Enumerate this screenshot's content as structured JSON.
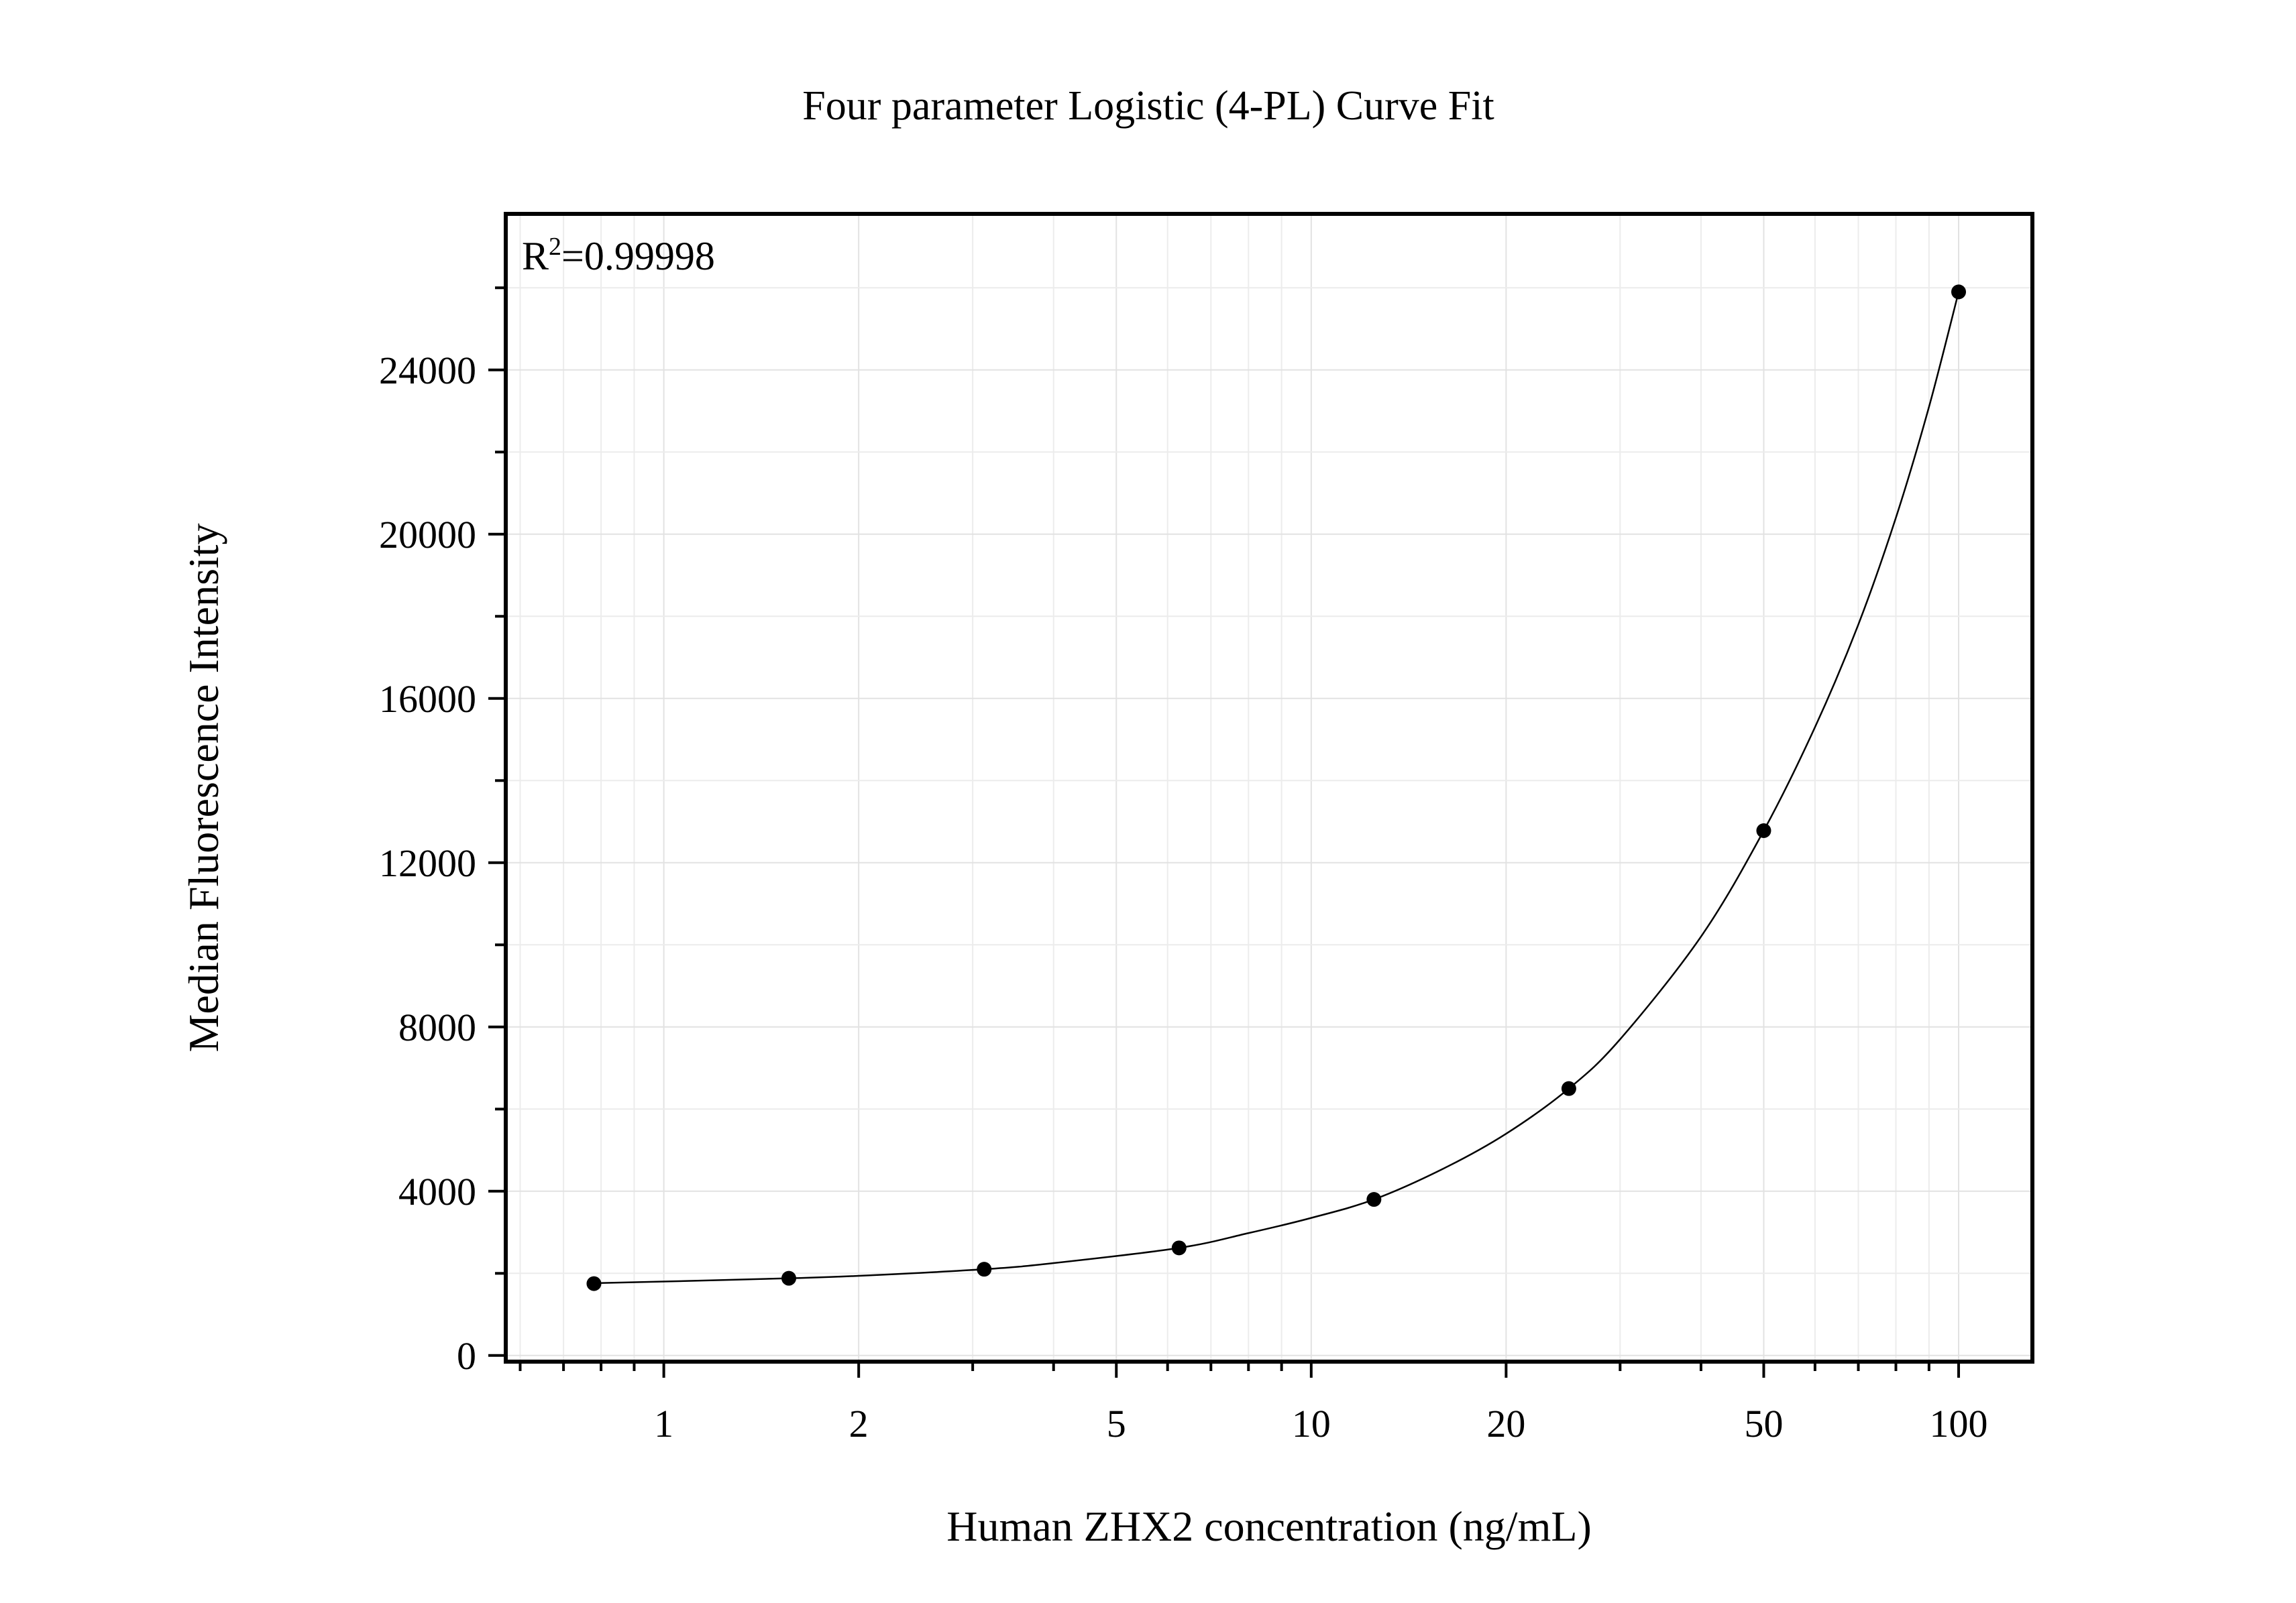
{
  "chart_data": {
    "type": "scatter",
    "title": "Four parameter Logistic (4-PL) Curve Fit",
    "xlabel": "Human ZHX2 concentration (ng/mL)",
    "ylabel": "Median Fluorescence Intensity",
    "x_scale": "log",
    "xlim": [
      0.57,
      130
    ],
    "ylim": [
      -150,
      27800
    ],
    "x_ticks": [
      1,
      2,
      5,
      10,
      20,
      50,
      100
    ],
    "x_tick_labels": [
      "1",
      "2",
      "5",
      "10",
      "20",
      "50",
      "100"
    ],
    "y_ticks": [
      0,
      4000,
      8000,
      12000,
      16000,
      20000,
      24000
    ],
    "y_tick_labels": [
      "0",
      "4000",
      "8000",
      "12000",
      "16000",
      "20000",
      "24000"
    ],
    "grid": true,
    "annotation": {
      "base": "R",
      "superscript": "2",
      "value": "=0.99998"
    },
    "series": [
      {
        "x": [
          0.78,
          1.56,
          3.125,
          6.25,
          12.5,
          25,
          50,
          100
        ],
        "y": [
          1750,
          1880,
          2100,
          2620,
          3800,
          6500,
          12780,
          25900
        ]
      }
    ],
    "fit_curve": {
      "model": "4PL",
      "x": [
        0.78,
        1,
        1.56,
        2,
        3.125,
        4,
        6.25,
        8,
        10,
        12.5,
        16,
        20,
        25,
        30,
        40,
        50,
        60,
        70,
        80,
        90,
        100
      ],
      "y": [
        1760,
        1800,
        1880,
        1940,
        2100,
        2250,
        2620,
        2980,
        3350,
        3800,
        4550,
        5400,
        6500,
        7700,
        10200,
        12780,
        15300,
        17800,
        20400,
        23100,
        25900
      ]
    },
    "colors": {
      "points": "#000000",
      "line": "#000000",
      "grid": "#e2e2e2",
      "frame": "#000000"
    }
  }
}
